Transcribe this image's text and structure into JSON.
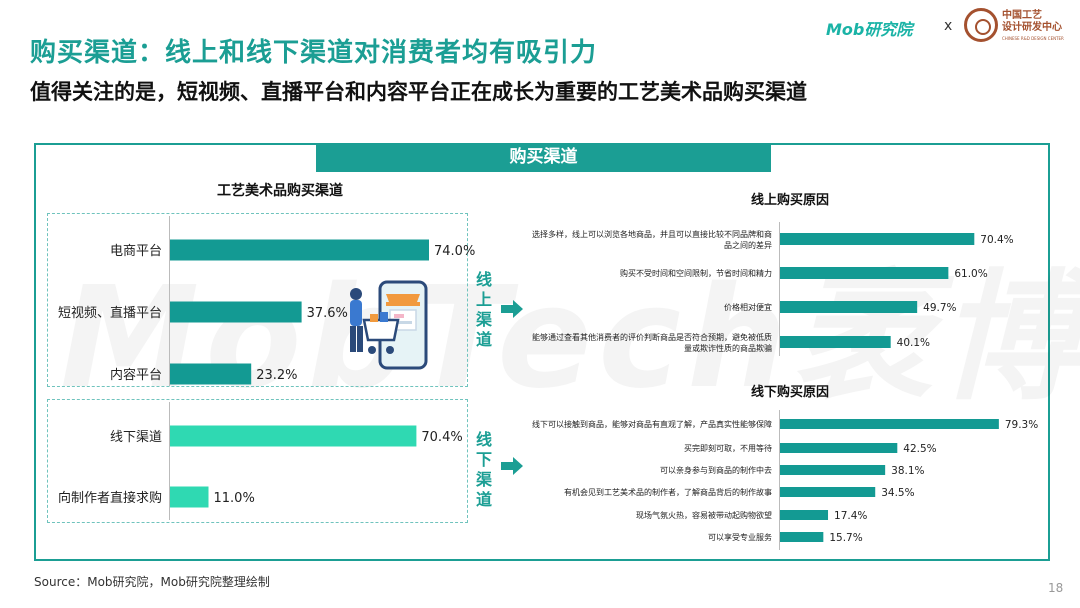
{
  "title": "购买渠道：线上和线下渠道对消费者均有吸引力",
  "subtitle": "值得关注的是，短视频、直播平台和内容平台正在成长为重要的工艺美术品购买渠道",
  "logos": {
    "mob": "Mob研究院",
    "x": "x",
    "partner_cn_line1": "中国工艺",
    "partner_cn_line2": "设计研发中心",
    "partner_en": "CHINESE R&D DESIGN CENTER"
  },
  "panel": {
    "header": "购买渠道"
  },
  "side_labels": {
    "online": "线上渠道",
    "offline": "线下渠道"
  },
  "footer": {
    "source": "Source：Mob研究院，Mob研究院整理绘制",
    "page": "18"
  },
  "colors": {
    "teal_dark": "#139a93",
    "teal_light": "#2fd9b2",
    "title": "#1b9e94"
  },
  "chart_data": [
    {
      "type": "bar",
      "orientation": "horizontal",
      "title": "工艺美术品购买渠道",
      "unit": "%",
      "groups": [
        {
          "name": "线上渠道",
          "color": "#139a93",
          "categories": [
            "电商平台",
            "短视频、直播平台",
            "内容平台"
          ],
          "values": [
            74.0,
            37.6,
            23.2
          ]
        },
        {
          "name": "线下渠道",
          "color": "#2fd9b2",
          "categories": [
            "线下渠道",
            "向制作者直接求购"
          ],
          "values": [
            70.4,
            11.0
          ]
        }
      ]
    },
    {
      "type": "bar",
      "orientation": "horizontal",
      "title": "线上购买原因",
      "unit": "%",
      "color": "#139a93",
      "categories": [
        "选择多样，线上可以浏览各地商品，并且可以直接比较不同品牌和商品之间的差异",
        "购买不受时间和空间限制，节省时间和精力",
        "价格相对便宜",
        "能够通过查看其他消费者的评价判断商品是否符合预期，避免被低质量或欺诈性质的商品欺骗"
      ],
      "values": [
        70.4,
        61.0,
        49.7,
        40.1
      ]
    },
    {
      "type": "bar",
      "orientation": "horizontal",
      "title": "线下购买原因",
      "unit": "%",
      "color": "#139a93",
      "categories": [
        "线下可以接触到商品，能够对商品有直观了解，产品真实性能够保障",
        "买完即刻可取，不用等待",
        "可以亲身参与到商品的制作中去",
        "有机会见到工艺美术品的制作者，了解商品背后的制作故事",
        "现场气氛火热，容易被带动起购物欲望",
        "可以享受专业服务"
      ],
      "values": [
        79.3,
        42.5,
        38.1,
        34.5,
        17.4,
        15.7
      ]
    }
  ]
}
